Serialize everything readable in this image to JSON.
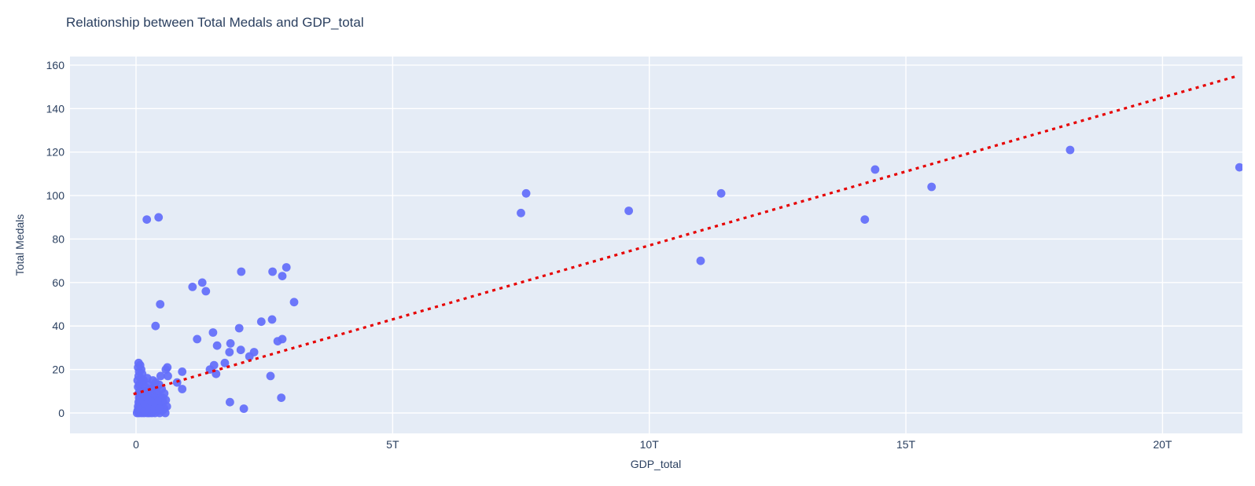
{
  "chart_data": {
    "type": "scatter",
    "title": "Relationship between Total Medals and GDP_total",
    "xlabel": "GDP_total",
    "ylabel": "Total Medals",
    "x_unit": "trillions",
    "x_ticks": [
      {
        "value": 0,
        "label": "0"
      },
      {
        "value": 5,
        "label": "5T"
      },
      {
        "value": 10,
        "label": "10T"
      },
      {
        "value": 15,
        "label": "15T"
      },
      {
        "value": 20,
        "label": "20T"
      }
    ],
    "y_ticks": [
      {
        "value": 0,
        "label": "0"
      },
      {
        "value": 20,
        "label": "20"
      },
      {
        "value": 40,
        "label": "40"
      },
      {
        "value": 60,
        "label": "60"
      },
      {
        "value": 80,
        "label": "80"
      },
      {
        "value": 100,
        "label": "100"
      },
      {
        "value": 120,
        "label": "120"
      },
      {
        "value": 140,
        "label": "140"
      },
      {
        "value": 160,
        "label": "160"
      }
    ],
    "x_range": [
      -1.29,
      21.56
    ],
    "y_range": [
      -9.4,
      164
    ],
    "grid": true,
    "legend": false,
    "colors": {
      "marker": "#636efa",
      "trend": "#e60000",
      "plot_bg": "#e5ecf6",
      "grid": "#ffffff",
      "text": "#2a3f5f"
    },
    "trendline": {
      "style": "dotted",
      "x0": -0.05,
      "y0": 8.7,
      "x1": 21.44,
      "y1": 154.9
    },
    "points": [
      [
        0.21,
        89
      ],
      [
        0.44,
        90
      ],
      [
        7.5,
        92
      ],
      [
        7.6,
        101
      ],
      [
        9.6,
        93
      ],
      [
        11.0,
        70
      ],
      [
        11.4,
        101
      ],
      [
        14.2,
        89
      ],
      [
        14.4,
        112
      ],
      [
        15.5,
        104
      ],
      [
        18.2,
        121
      ],
      [
        21.5,
        113
      ],
      [
        2.05,
        65
      ],
      [
        2.66,
        65
      ],
      [
        2.93,
        67
      ],
      [
        2.85,
        63
      ],
      [
        1.1,
        58
      ],
      [
        1.29,
        60
      ],
      [
        1.36,
        56
      ],
      [
        0.47,
        50
      ],
      [
        3.08,
        51
      ],
      [
        0.38,
        40
      ],
      [
        2.44,
        42
      ],
      [
        2.65,
        43
      ],
      [
        2.01,
        39
      ],
      [
        1.5,
        37
      ],
      [
        1.19,
        34
      ],
      [
        1.58,
        31
      ],
      [
        1.84,
        32
      ],
      [
        2.76,
        33
      ],
      [
        2.85,
        34
      ],
      [
        1.82,
        28
      ],
      [
        2.04,
        29
      ],
      [
        2.3,
        28
      ],
      [
        2.21,
        26
      ],
      [
        1.73,
        23
      ],
      [
        0.9,
        19
      ],
      [
        0.9,
        11
      ],
      [
        0.61,
        21
      ],
      [
        0.62,
        17
      ],
      [
        2.62,
        17
      ],
      [
        1.83,
        5
      ],
      [
        2.1,
        2
      ],
      [
        2.83,
        7
      ],
      [
        1.44,
        20
      ],
      [
        1.52,
        22
      ],
      [
        1.56,
        18
      ],
      [
        0.8,
        14
      ],
      [
        0.05,
        23
      ],
      [
        0.08,
        22
      ],
      [
        0.04,
        21
      ],
      [
        0.1,
        20
      ],
      [
        0.06,
        19
      ],
      [
        0.12,
        18
      ],
      [
        0.05,
        17
      ],
      [
        0.09,
        16
      ],
      [
        0.03,
        15
      ],
      [
        0.11,
        14
      ],
      [
        0.06,
        13
      ],
      [
        0.04,
        12
      ],
      [
        0.1,
        11
      ],
      [
        0.07,
        10
      ],
      [
        0.13,
        10
      ],
      [
        0.05,
        9
      ],
      [
        0.09,
        9
      ],
      [
        0.15,
        15
      ],
      [
        0.18,
        12
      ],
      [
        0.22,
        16
      ],
      [
        0.25,
        13
      ],
      [
        0.3,
        11
      ],
      [
        0.2,
        10
      ],
      [
        0.28,
        9
      ],
      [
        0.35,
        12
      ],
      [
        0.4,
        10
      ],
      [
        0.45,
        13
      ],
      [
        0.5,
        11
      ],
      [
        0.55,
        9
      ],
      [
        0.33,
        15
      ],
      [
        0.48,
        17
      ],
      [
        0.58,
        20
      ],
      [
        0.42,
        9
      ],
      [
        0.38,
        14
      ],
      [
        0.02,
        0
      ],
      [
        0.03,
        1
      ],
      [
        0.04,
        3
      ],
      [
        0.05,
        5
      ],
      [
        0.06,
        0
      ],
      [
        0.06,
        7
      ],
      [
        0.07,
        2
      ],
      [
        0.08,
        4
      ],
      [
        0.08,
        8
      ],
      [
        0.09,
        1
      ],
      [
        0.1,
        6
      ],
      [
        0.11,
        0
      ],
      [
        0.11,
        3
      ],
      [
        0.12,
        8
      ],
      [
        0.13,
        1
      ],
      [
        0.13,
        5
      ],
      [
        0.14,
        2
      ],
      [
        0.15,
        7
      ],
      [
        0.16,
        0
      ],
      [
        0.16,
        4
      ],
      [
        0.17,
        8
      ],
      [
        0.18,
        2
      ],
      [
        0.19,
        6
      ],
      [
        0.2,
        1
      ],
      [
        0.21,
        3
      ],
      [
        0.22,
        0
      ],
      [
        0.22,
        8
      ],
      [
        0.23,
        5
      ],
      [
        0.24,
        2
      ],
      [
        0.25,
        7
      ],
      [
        0.26,
        0
      ],
      [
        0.27,
        4
      ],
      [
        0.28,
        1
      ],
      [
        0.29,
        6
      ],
      [
        0.3,
        3
      ],
      [
        0.31,
        0
      ],
      [
        0.32,
        8
      ],
      [
        0.33,
        2
      ],
      [
        0.34,
        5
      ],
      [
        0.35,
        1
      ],
      [
        0.36,
        7
      ],
      [
        0.37,
        0
      ],
      [
        0.38,
        4
      ],
      [
        0.4,
        2
      ],
      [
        0.41,
        6
      ],
      [
        0.43,
        1
      ],
      [
        0.44,
        4
      ],
      [
        0.46,
        0
      ],
      [
        0.47,
        7
      ],
      [
        0.49,
        3
      ],
      [
        0.51,
        1
      ],
      [
        0.53,
        5
      ],
      [
        0.55,
        2
      ],
      [
        0.57,
        0
      ],
      [
        0.6,
        3
      ],
      [
        0.05,
        2
      ],
      [
        0.07,
        6
      ],
      [
        0.09,
        4
      ],
      [
        0.12,
        2
      ],
      [
        0.14,
        6
      ],
      [
        0.17,
        1
      ],
      [
        0.19,
        4
      ],
      [
        0.24,
        6
      ],
      [
        0.26,
        2
      ],
      [
        0.31,
        5
      ],
      [
        0.36,
        2
      ],
      [
        0.42,
        5
      ],
      [
        0.45,
        2
      ],
      [
        0.52,
        7
      ],
      [
        0.58,
        6
      ]
    ]
  }
}
